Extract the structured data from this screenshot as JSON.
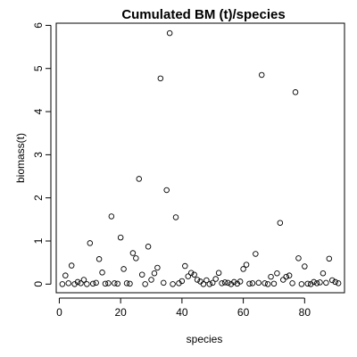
{
  "chart_data": {
    "type": "scatter",
    "title": "Cumulated BM (t)/species",
    "xlabel": "species",
    "ylabel": "biomass(t)",
    "xlim": [
      -1,
      93
    ],
    "ylim": [
      -0.2,
      6.05
    ],
    "xticks": [
      0,
      20,
      40,
      60,
      80
    ],
    "yticks": [
      0,
      1,
      2,
      3,
      4,
      5,
      6
    ],
    "grid": false,
    "legend": "none",
    "marker": "open-circle",
    "colors": {
      "points": "#000000",
      "axes": "#000000",
      "background": "#ffffff"
    },
    "x": [
      1,
      2,
      3,
      4,
      5,
      6,
      7,
      8,
      9,
      10,
      11,
      12,
      13,
      14,
      15,
      16,
      17,
      18,
      19,
      20,
      21,
      22,
      23,
      24,
      25,
      26,
      27,
      28,
      29,
      30,
      31,
      32,
      33,
      34,
      35,
      36,
      37,
      38,
      39,
      40,
      41,
      42,
      43,
      44,
      45,
      46,
      47,
      48,
      49,
      50,
      51,
      52,
      53,
      54,
      55,
      56,
      57,
      58,
      59,
      60,
      61,
      62,
      63,
      64,
      65,
      66,
      67,
      68,
      69,
      70,
      71,
      72,
      73,
      74,
      75,
      76,
      77,
      78,
      79,
      80,
      81,
      82,
      83,
      84,
      85,
      86,
      87,
      88,
      89,
      90,
      91
    ],
    "y": [
      0.0,
      0.2,
      0.02,
      0.43,
      0.0,
      0.05,
      0.02,
      0.1,
      0.0,
      0.95,
      0.01,
      0.03,
      0.58,
      0.27,
      0.01,
      0.02,
      1.57,
      0.02,
      0.01,
      1.08,
      0.35,
      0.02,
      0.01,
      0.72,
      0.6,
      2.44,
      0.22,
      0.0,
      0.87,
      0.1,
      0.25,
      0.38,
      4.77,
      0.03,
      2.18,
      5.82,
      0.0,
      1.55,
      0.02,
      0.07,
      0.42,
      0.18,
      0.26,
      0.22,
      0.1,
      0.06,
      0.0,
      0.09,
      0.0,
      0.03,
      0.12,
      0.26,
      0.02,
      0.04,
      0.03,
      0.0,
      0.05,
      0.01,
      0.06,
      0.35,
      0.45,
      0.01,
      0.02,
      0.7,
      0.03,
      4.85,
      0.02,
      0.0,
      0.17,
      0.01,
      0.25,
      1.42,
      0.1,
      0.17,
      0.2,
      0.02,
      4.45,
      0.6,
      0.0,
      0.41,
      0.01,
      0.0,
      0.05,
      0.02,
      0.04,
      0.25,
      0.03,
      0.59,
      0.09,
      0.05,
      0.02
    ]
  }
}
